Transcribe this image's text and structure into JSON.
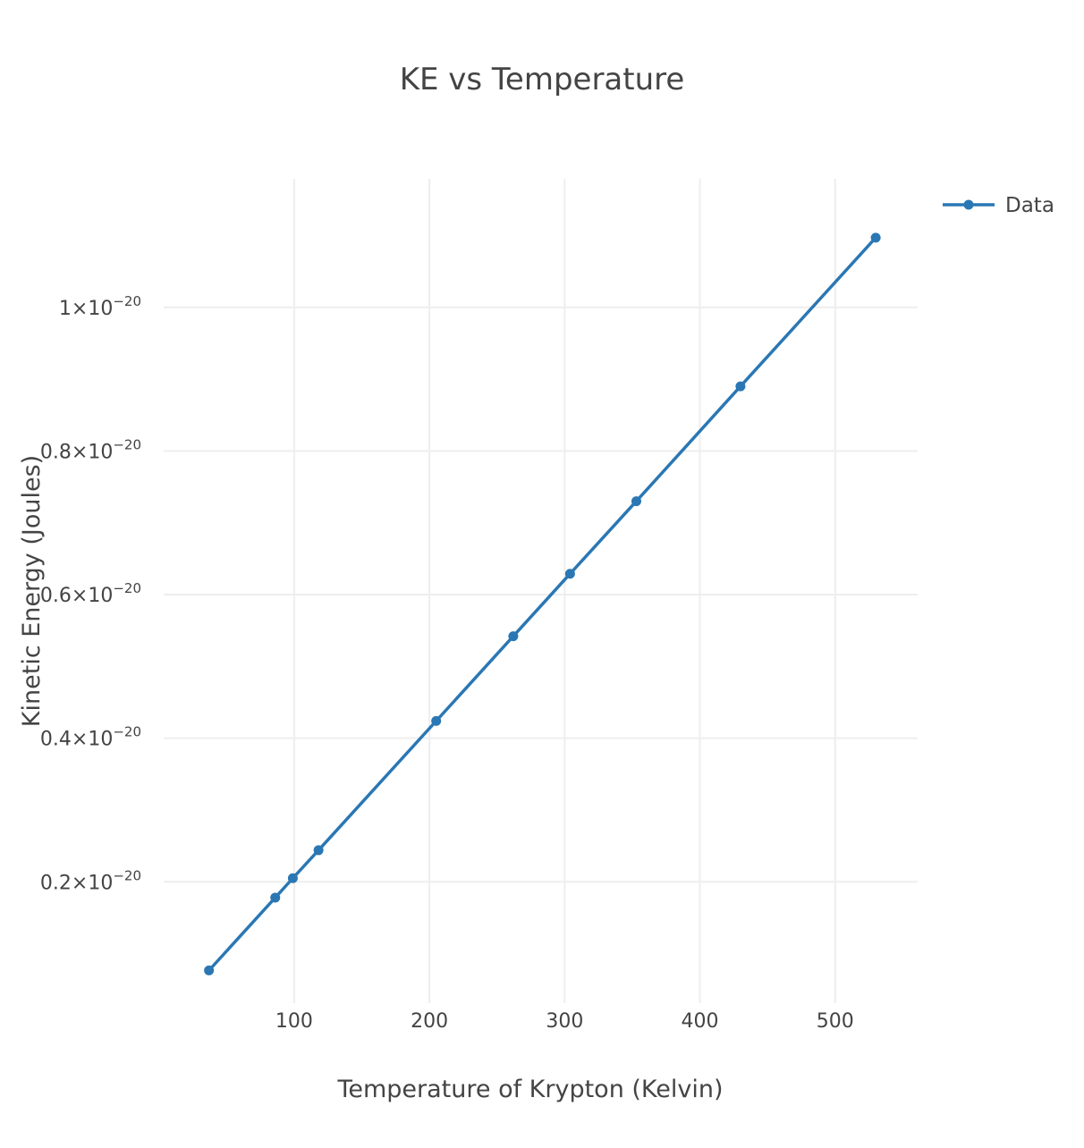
{
  "chart_data": {
    "type": "line",
    "title": "KE vs Temperature",
    "xlabel": "Temperature of Krypton (Kelvin)",
    "ylabel": "Kinetic Energy (Joules)",
    "xlim": [
      3.5,
      561
    ],
    "ylim": [
      3.1e-22,
      1.179e-20
    ],
    "x_ticks": [
      100,
      200,
      300,
      400,
      500
    ],
    "x_tick_labels": [
      "100",
      "200",
      "300",
      "400",
      "500"
    ],
    "y_ticks": [
      2e-21,
      4e-21,
      6e-21,
      8e-21,
      1e-20
    ],
    "y_tick_labels": [
      {
        "base": "0.2×10",
        "exp": "−20"
      },
      {
        "base": "0.4×10",
        "exp": "−20"
      },
      {
        "base": "0.6×10",
        "exp": "−20"
      },
      {
        "base": "0.8×10",
        "exp": "−20"
      },
      {
        "base": "1×10",
        "exp": "−20"
      }
    ],
    "grid": true,
    "legend_position": "top-right",
    "color": "#2a77b4",
    "series": [
      {
        "name": "Data",
        "x": [
          37,
          86,
          99,
          118,
          205,
          262,
          304,
          353,
          430,
          530
        ],
        "y": [
          7.66e-22,
          1.78e-21,
          2.05e-21,
          2.44e-21,
          4.24e-21,
          5.42e-21,
          6.29e-21,
          7.3e-21,
          8.9e-21,
          1.097e-20
        ]
      }
    ]
  }
}
